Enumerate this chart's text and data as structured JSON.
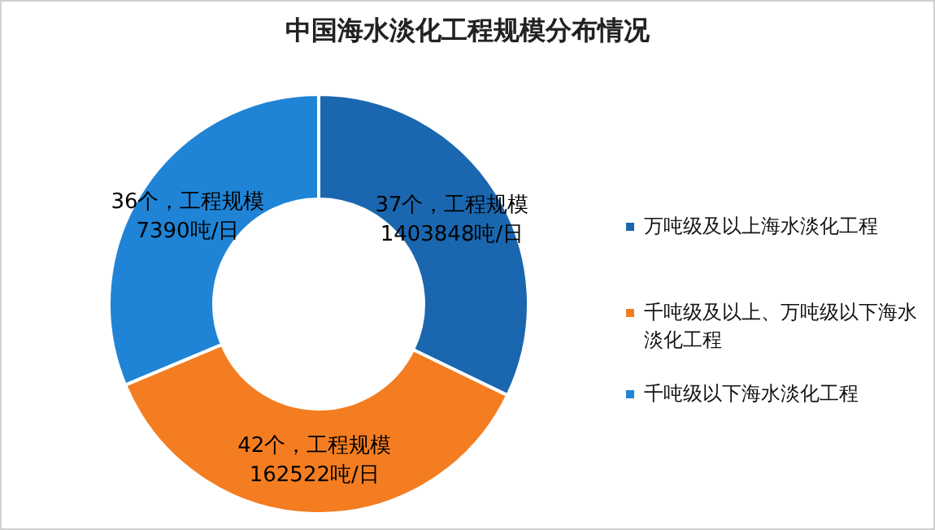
{
  "chart_data": {
    "type": "donut",
    "title": "中国海水淡化工程规模分布情况",
    "categories": [
      "万吨级及以上海水淡化工程",
      "千吨级及以上、万吨级以下海水淡化工程",
      "千吨级以下海水淡化工程"
    ],
    "values": [
      37,
      42,
      36
    ],
    "colors": [
      "#1a67b0",
      "#f47d21",
      "#1f84d6"
    ],
    "value_labels": [
      "37个，工程规模\n1403848吨/日",
      "42个，工程规模\n162522吨/日",
      "36个，工程规模\n7390吨/日"
    ],
    "legend": "right"
  }
}
